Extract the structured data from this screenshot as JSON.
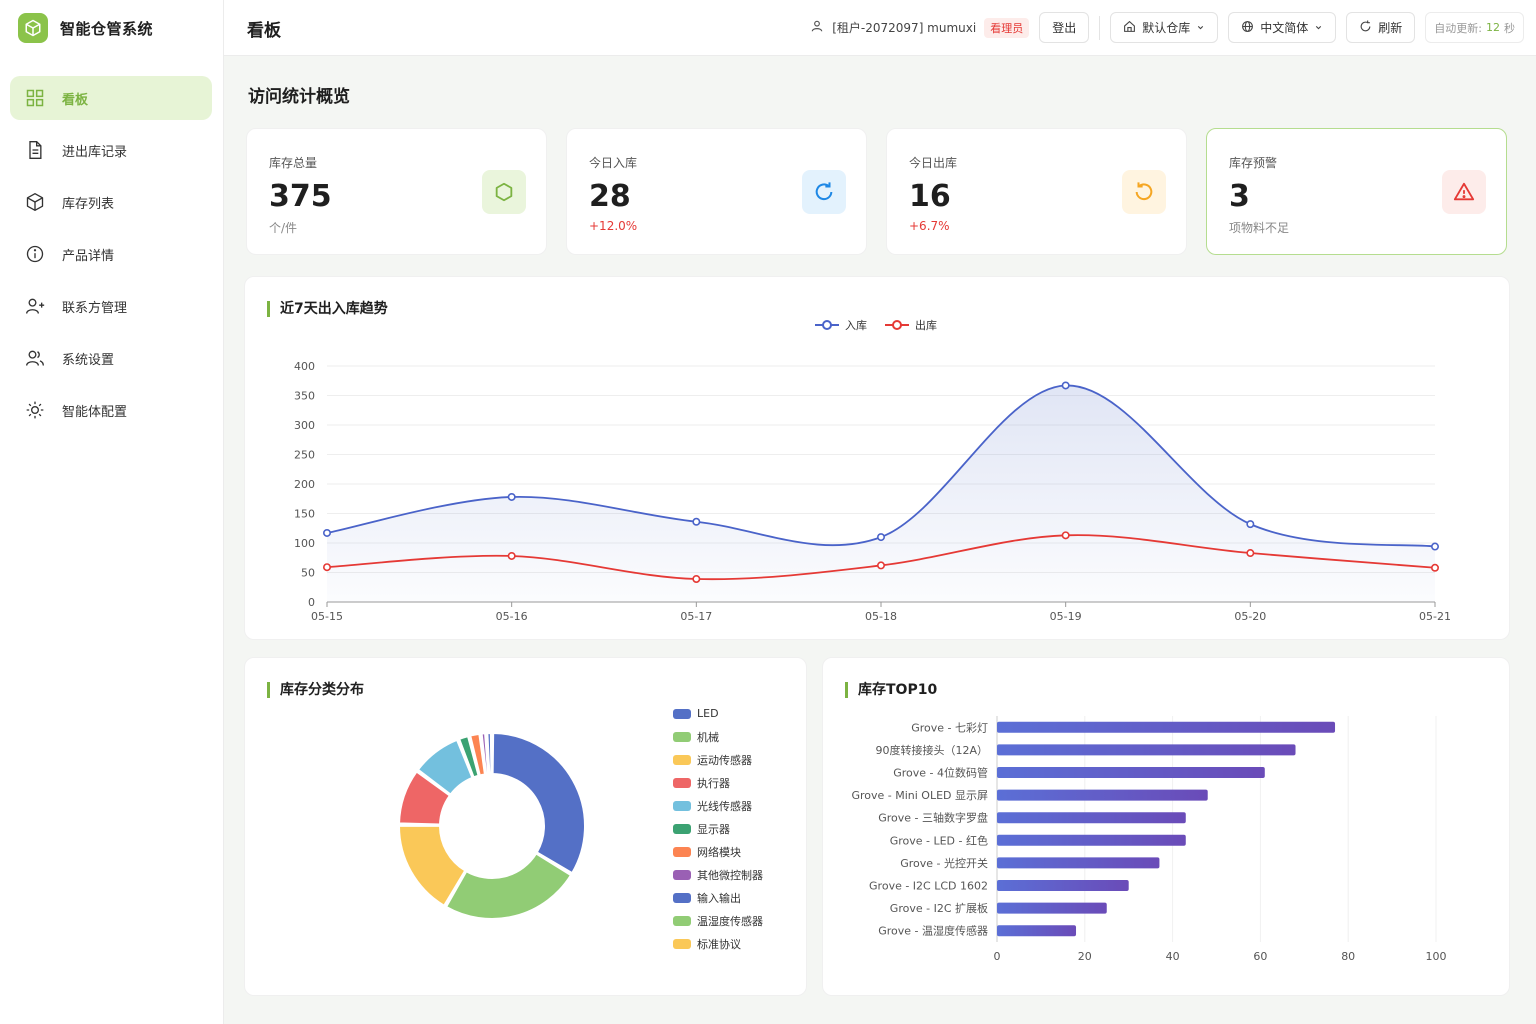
{
  "brand": {
    "name": "智能仓管系统"
  },
  "sidebar": {
    "items": [
      {
        "label": "看板",
        "icon": "grid-icon",
        "active": true
      },
      {
        "label": "进出库记录",
        "icon": "document-icon"
      },
      {
        "label": "库存列表",
        "icon": "cube-icon"
      },
      {
        "label": "产品详情",
        "icon": "info-icon"
      },
      {
        "label": "联系方管理",
        "icon": "user-plus-icon"
      },
      {
        "label": "系统设置",
        "icon": "users-icon"
      },
      {
        "label": "智能体配置",
        "icon": "sun-icon"
      }
    ]
  },
  "header": {
    "title": "看板",
    "user": "[租户-2072097] mumuxi",
    "role": "看理员",
    "logout": "登出",
    "warehouse": "默认仓库",
    "language": "中文简体",
    "refresh": "刷新",
    "auto_update_label": "自动更新:",
    "auto_update_value": "12",
    "auto_update_unit": "秒"
  },
  "overview": {
    "title": "访问统计概览",
    "cards": [
      {
        "label": "库存总量",
        "value": "375",
        "sub": "个/件",
        "icon": "hexagon-icon",
        "color": "#7cb342",
        "bg": "#eaf5dc"
      },
      {
        "label": "今日入库",
        "value": "28",
        "sub": "+12.0%",
        "icon": "refresh-icon",
        "color": "#1e88e5",
        "bg": "#e3f2fd"
      },
      {
        "label": "今日出库",
        "value": "16",
        "sub": "+6.7%",
        "icon": "undo-icon",
        "color": "#f5a623",
        "bg": "#fff4e0"
      },
      {
        "label": "库存预警",
        "value": "3",
        "sub": "项物料不足",
        "icon": "warning-icon",
        "color": "#e53935",
        "bg": "#fdecea"
      }
    ]
  },
  "trend": {
    "title": "近7天出入库趋势",
    "chart_data": {
      "type": "line",
      "x": [
        "05-15",
        "05-16",
        "05-17",
        "05-18",
        "05-19",
        "05-20",
        "05-21"
      ],
      "series": [
        {
          "name": "入库",
          "values": [
            117,
            178,
            136,
            110,
            367,
            132,
            94
          ],
          "color": "#4a63c9"
        },
        {
          "name": "出库",
          "values": [
            59,
            78,
            39,
            62,
            113,
            83,
            58
          ],
          "color": "#e53935"
        }
      ],
      "ylim": [
        0,
        400
      ],
      "yticks": [
        0,
        50,
        100,
        150,
        200,
        250,
        300,
        350,
        400
      ],
      "legend": "top-center",
      "grid": true
    }
  },
  "category": {
    "title": "库存分类分布",
    "chart_data": {
      "type": "pie",
      "categories": [
        "LED",
        "机械",
        "运动传感器",
        "执行器",
        "光线传感器",
        "显示器",
        "网络模块",
        "其他微控制器",
        "输入输出",
        "温湿度传感器",
        "标准协议"
      ],
      "values": [
        34,
        25,
        17,
        10,
        9,
        2,
        2,
        1,
        1,
        0,
        0
      ],
      "colors": [
        "#5470c6",
        "#91cc75",
        "#fac858",
        "#ee6666",
        "#73c0de",
        "#3ba272",
        "#fc8452",
        "#9a60b4",
        "#5470c6",
        "#91cc75",
        "#fac858"
      ],
      "legend": "right"
    }
  },
  "top10": {
    "title": "库存TOP10",
    "chart_data": {
      "type": "bar",
      "orientation": "horizontal",
      "categories": [
        "Grove - 七彩灯",
        "90度转接接头（12A）",
        "Grove - 4位数码管",
        "Grove - Mini OLED 显示屏",
        "Grove - 三轴数字罗盘",
        "Grove - LED - 红色",
        "Grove - 光控开关",
        "Grove - I2C LCD 1602",
        "Grove - I2C 扩展板",
        "Grove - 温湿度传感器"
      ],
      "values": [
        77,
        68,
        61,
        48,
        43,
        43,
        37,
        30,
        25,
        18
      ],
      "xlim": [
        0,
        100
      ],
      "xticks": [
        0,
        20,
        40,
        60,
        80,
        100
      ],
      "color": "#5a5fd0"
    }
  }
}
